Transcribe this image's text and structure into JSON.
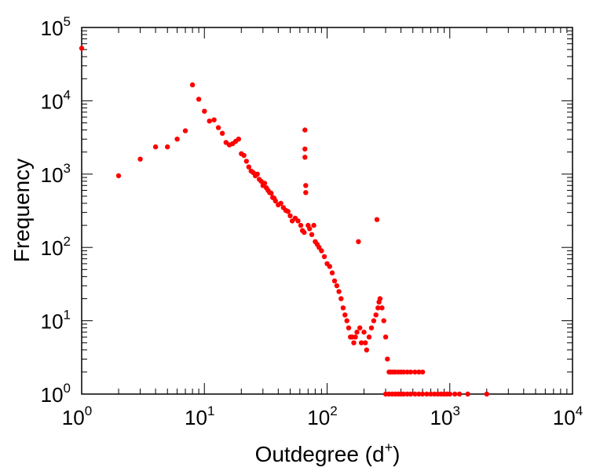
{
  "chart_data": {
    "type": "scatter",
    "xscale": "log",
    "yscale": "log",
    "xlim": [
      1,
      10000
    ],
    "ylim": [
      1,
      100000
    ],
    "xlabel": {
      "text": "Outdegree (d",
      "sup": "+",
      "suffix": ")"
    },
    "ylabel": "Frequency",
    "x_ticks": [
      {
        "base": "10",
        "exp": "0"
      },
      {
        "base": "10",
        "exp": "1"
      },
      {
        "base": "10",
        "exp": "2"
      },
      {
        "base": "10",
        "exp": "3"
      },
      {
        "base": "10",
        "exp": "4"
      }
    ],
    "y_ticks": [
      {
        "base": "10",
        "exp": "0"
      },
      {
        "base": "10",
        "exp": "1"
      },
      {
        "base": "10",
        "exp": "2"
      },
      {
        "base": "10",
        "exp": "3"
      },
      {
        "base": "10",
        "exp": "4"
      },
      {
        "base": "10",
        "exp": "5"
      }
    ],
    "grid": false,
    "marker_color": "#ff0000",
    "points": [
      [
        1,
        52000
      ],
      [
        2,
        950
      ],
      [
        3,
        1600
      ],
      [
        4,
        2350
      ],
      [
        5,
        2350
      ],
      [
        6,
        3000
      ],
      [
        7,
        3900
      ],
      [
        8,
        16500
      ],
      [
        9,
        10500
      ],
      [
        10,
        7200
      ],
      [
        11,
        5300
      ],
      [
        12,
        5500
      ],
      [
        13,
        4300
      ],
      [
        14,
        3600
      ],
      [
        15,
        2700
      ],
      [
        16,
        2500
      ],
      [
        17,
        2600
      ],
      [
        18,
        2800
      ],
      [
        19,
        3000
      ],
      [
        20,
        1900
      ],
      [
        21,
        1800
      ],
      [
        22,
        1500
      ],
      [
        23,
        1250
      ],
      [
        24,
        1100
      ],
      [
        25,
        1050
      ],
      [
        26,
        950
      ],
      [
        27,
        1000
      ],
      [
        28,
        850
      ],
      [
        29,
        800
      ],
      [
        30,
        700
      ],
      [
        31,
        750
      ],
      [
        32,
        650
      ],
      [
        33,
        600
      ],
      [
        34,
        560
      ],
      [
        35,
        550
      ],
      [
        36,
        480
      ],
      [
        37,
        470
      ],
      [
        38,
        430
      ],
      [
        40,
        380
      ],
      [
        42,
        400
      ],
      [
        44,
        350
      ],
      [
        46,
        320
      ],
      [
        48,
        310
      ],
      [
        50,
        270
      ],
      [
        52,
        230
      ],
      [
        55,
        250
      ],
      [
        58,
        230
      ],
      [
        61,
        200
      ],
      [
        63,
        170
      ],
      [
        65,
        160
      ],
      [
        66,
        4000
      ],
      [
        66,
        2200
      ],
      [
        66,
        1700
      ],
      [
        67,
        700
      ],
      [
        67,
        560
      ],
      [
        70,
        200
      ],
      [
        72,
        180
      ],
      [
        75,
        150
      ],
      [
        78,
        200
      ],
      [
        80,
        120
      ],
      [
        83,
        110
      ],
      [
        86,
        100
      ],
      [
        90,
        90
      ],
      [
        95,
        75
      ],
      [
        100,
        60
      ],
      [
        105,
        55
      ],
      [
        110,
        45
      ],
      [
        115,
        35
      ],
      [
        120,
        30
      ],
      [
        125,
        25
      ],
      [
        130,
        20
      ],
      [
        135,
        15
      ],
      [
        140,
        12
      ],
      [
        145,
        10
      ],
      [
        150,
        8
      ],
      [
        155,
        6
      ],
      [
        160,
        6
      ],
      [
        165,
        5
      ],
      [
        170,
        6
      ],
      [
        175,
        7
      ],
      [
        180,
        120
      ],
      [
        185,
        8
      ],
      [
        190,
        5
      ],
      [
        200,
        7
      ],
      [
        205,
        5
      ],
      [
        210,
        4
      ],
      [
        220,
        6
      ],
      [
        230,
        8
      ],
      [
        240,
        10
      ],
      [
        250,
        12
      ],
      [
        255,
        240
      ],
      [
        260,
        15
      ],
      [
        265,
        18
      ],
      [
        270,
        20
      ],
      [
        280,
        15
      ],
      [
        290,
        10
      ],
      [
        300,
        6
      ],
      [
        310,
        3
      ],
      [
        320,
        2
      ],
      [
        330,
        2
      ],
      [
        340,
        2
      ],
      [
        350,
        2
      ],
      [
        360,
        2
      ],
      [
        380,
        2
      ],
      [
        400,
        2
      ],
      [
        420,
        2
      ],
      [
        450,
        2
      ],
      [
        480,
        2
      ],
      [
        520,
        2
      ],
      [
        560,
        2
      ],
      [
        600,
        2
      ],
      [
        300,
        1
      ],
      [
        320,
        1
      ],
      [
        340,
        1
      ],
      [
        360,
        1
      ],
      [
        380,
        1
      ],
      [
        400,
        1
      ],
      [
        420,
        1
      ],
      [
        450,
        1
      ],
      [
        480,
        1
      ],
      [
        520,
        1
      ],
      [
        560,
        1
      ],
      [
        600,
        1
      ],
      [
        650,
        1
      ],
      [
        700,
        1
      ],
      [
        750,
        1
      ],
      [
        800,
        1
      ],
      [
        850,
        1
      ],
      [
        900,
        1
      ],
      [
        950,
        1
      ],
      [
        1000,
        1
      ],
      [
        1100,
        1
      ],
      [
        1200,
        1
      ],
      [
        1400,
        1
      ],
      [
        2000,
        1
      ]
    ]
  }
}
